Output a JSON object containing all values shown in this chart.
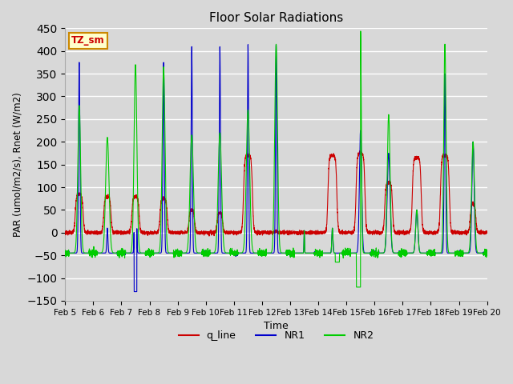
{
  "title": "Floor Solar Radiations",
  "xlabel": "Time",
  "ylabel": "PAR (umol/m2/s), Rnet (W/m2)",
  "ylim": [
    -150,
    450
  ],
  "legend_labels": [
    "q_line",
    "NR1",
    "NR2"
  ],
  "line_colors": [
    "#cc0000",
    "#0000cc",
    "#00cc00"
  ],
  "annotation_text": "TZ_sm",
  "annotation_bg": "#ffffcc",
  "annotation_border": "#cc8800",
  "bg_color": "#d8d8d8",
  "plot_bg": "#d8d8d8",
  "grid_color": "white",
  "tick_dates": [
    "Feb 5",
    "Feb 6",
    "Feb 7",
    "Feb 8",
    "Feb 9",
    "Feb 10",
    "Feb 11",
    "Feb 12",
    "Feb 13",
    "Feb 14",
    "Feb 15",
    "Feb 16",
    "Feb 17",
    "Feb 18",
    "Feb 19",
    "Feb 20"
  ],
  "n_points": 4800
}
